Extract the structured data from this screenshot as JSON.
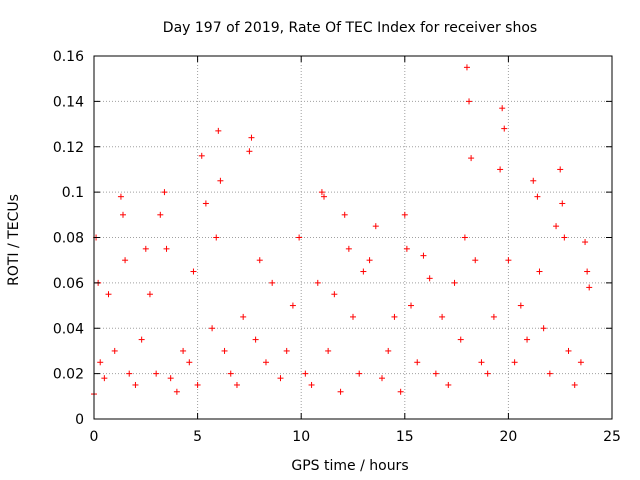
{
  "chart_data": {
    "type": "scatter",
    "title": "Day 197 of 2019, Rate Of TEC Index for receiver shos",
    "xlabel": "GPS time / hours",
    "ylabel": "ROTI / TECUs",
    "xlim": [
      0,
      25
    ],
    "ylim": [
      0,
      0.16
    ],
    "xticks": [
      0,
      5,
      10,
      15,
      20,
      25
    ],
    "xtick_labels": [
      "0",
      "5",
      "10",
      "15",
      "20",
      "25"
    ],
    "yticks": [
      0,
      0.02,
      0.04,
      0.06,
      0.08,
      0.1,
      0.12,
      0.14,
      0.16
    ],
    "ytick_labels": [
      "0",
      "0.02",
      "0.04",
      "0.06",
      "0.08",
      "0.1",
      "0.12",
      "0.14",
      "0.16"
    ],
    "grid": true,
    "marker": "+",
    "color": "#ff0000",
    "series": [
      {
        "x": [
          0.0,
          0.1,
          0.2,
          0.3,
          0.5,
          0.7,
          1.0,
          1.3,
          1.4,
          1.5,
          1.7,
          2.0,
          2.3,
          2.5,
          2.7,
          3.0,
          3.2,
          3.4,
          3.5,
          3.7,
          4.0,
          4.3,
          4.6,
          4.8,
          5.0,
          5.2,
          5.4,
          5.7,
          5.9,
          6.0,
          6.1,
          6.3,
          6.6,
          6.9,
          7.2,
          7.5,
          7.6,
          7.8,
          8.0,
          8.3,
          8.6,
          9.0,
          9.3,
          9.6,
          9.9,
          10.2,
          10.5,
          10.8,
          11.0,
          11.1,
          11.3,
          11.6,
          11.9,
          12.1,
          12.3,
          12.5,
          12.8,
          13.0,
          13.3,
          13.6,
          13.9,
          14.2,
          14.5,
          14.8,
          15.0,
          15.1,
          15.3,
          15.6,
          15.9,
          16.2,
          16.5,
          16.8,
          17.1,
          17.4,
          17.7,
          17.9,
          18.0,
          18.1,
          18.2,
          18.4,
          18.7,
          19.0,
          19.3,
          19.6,
          19.7,
          19.8,
          20.0,
          20.3,
          20.6,
          20.9,
          21.2,
          21.4,
          21.5,
          21.7,
          22.0,
          22.3,
          22.5,
          22.6,
          22.7,
          22.9,
          23.2,
          23.5,
          23.7,
          23.8,
          23.9
        ],
        "y": [
          0.011,
          0.08,
          0.06,
          0.025,
          0.018,
          0.055,
          0.03,
          0.098,
          0.09,
          0.07,
          0.02,
          0.015,
          0.035,
          0.075,
          0.055,
          0.02,
          0.09,
          0.1,
          0.075,
          0.018,
          0.012,
          0.03,
          0.025,
          0.065,
          0.015,
          0.116,
          0.095,
          0.04,
          0.08,
          0.127,
          0.105,
          0.03,
          0.02,
          0.015,
          0.045,
          0.118,
          0.124,
          0.035,
          0.07,
          0.025,
          0.06,
          0.018,
          0.03,
          0.05,
          0.08,
          0.02,
          0.015,
          0.06,
          0.1,
          0.098,
          0.03,
          0.055,
          0.012,
          0.09,
          0.075,
          0.045,
          0.02,
          0.065,
          0.07,
          0.085,
          0.018,
          0.03,
          0.045,
          0.012,
          0.09,
          0.075,
          0.05,
          0.025,
          0.072,
          0.062,
          0.02,
          0.045,
          0.015,
          0.06,
          0.035,
          0.08,
          0.155,
          0.14,
          0.115,
          0.07,
          0.025,
          0.02,
          0.045,
          0.11,
          0.137,
          0.128,
          0.07,
          0.025,
          0.05,
          0.035,
          0.105,
          0.098,
          0.065,
          0.04,
          0.02,
          0.085,
          0.11,
          0.095,
          0.08,
          0.03,
          0.015,
          0.025,
          0.078,
          0.065,
          0.058
        ]
      }
    ]
  }
}
